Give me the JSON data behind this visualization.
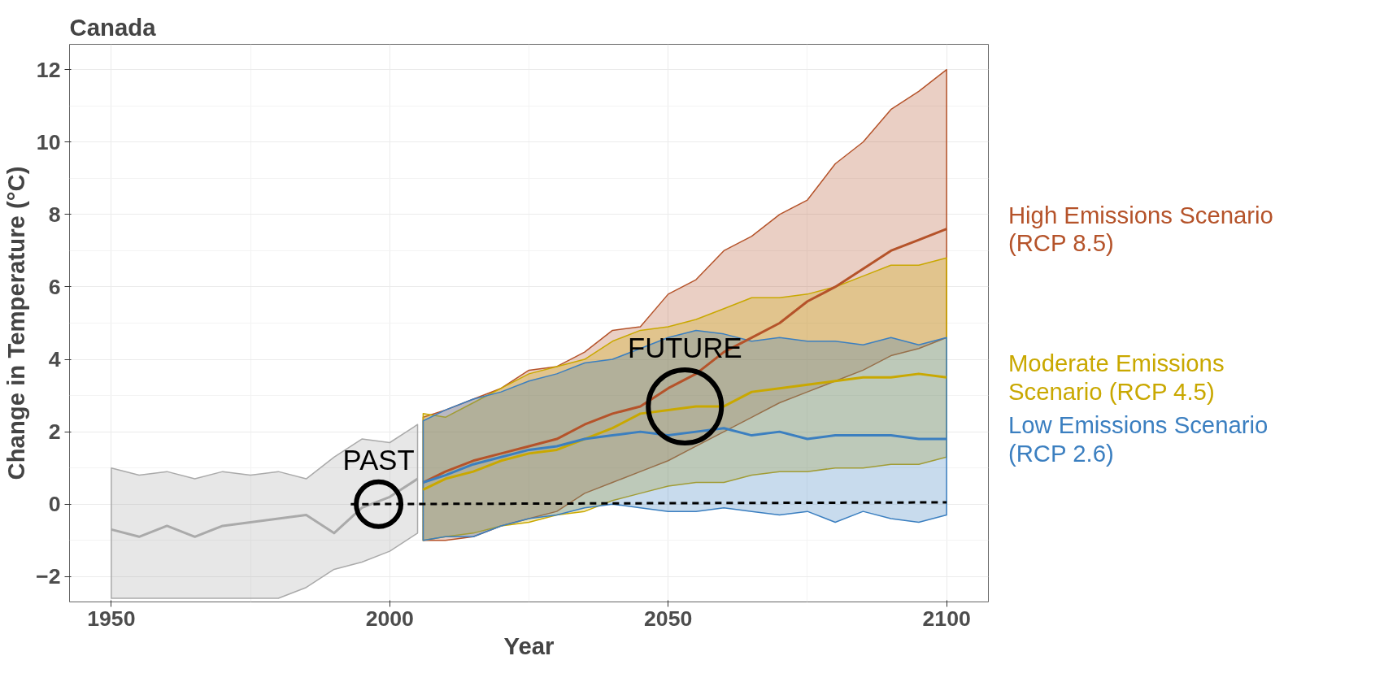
{
  "chart_data": {
    "type": "line",
    "title": "Canada",
    "xlabel": "Year",
    "ylabel": "Change in Temperature (°C)",
    "xlim": [
      1942.5,
      2107.5
    ],
    "ylim": [
      -2.7,
      12.7
    ],
    "xticks": [
      1950,
      2000,
      2050,
      2100
    ],
    "yticks": [
      -2,
      0,
      2,
      4,
      6,
      8,
      10,
      12
    ],
    "grid": true,
    "annotations": [
      {
        "text": "PAST",
        "x": 1998,
        "y": 0
      },
      {
        "text": "FUTURE",
        "x": 2053,
        "y": 2.7
      }
    ],
    "series": [
      {
        "color": "#aaaaaa",
        "x": [
          1950,
          1955,
          1960,
          1965,
          1970,
          1975,
          1980,
          1985,
          1990,
          1995,
          2000,
          2005
        ],
        "values": [
          -0.7,
          -0.9,
          -0.6,
          -0.9,
          -0.6,
          -0.5,
          -0.4,
          -0.3,
          -0.8,
          -0.1,
          0.2,
          0.7
        ],
        "upper": [
          1.0,
          0.8,
          0.9,
          0.7,
          0.9,
          0.8,
          0.9,
          0.7,
          1.3,
          1.8,
          1.7,
          2.2
        ],
        "lower": [
          -2.6,
          -2.6,
          -2.6,
          -2.6,
          -2.6,
          -2.6,
          -2.6,
          -2.3,
          -1.8,
          -1.6,
          -1.3,
          -0.8
        ]
      },
      {
        "name": "High Emissions Scenario\n(RCP 8.5)",
        "color": "#b5532a",
        "x": [
          2006,
          2010,
          2015,
          2020,
          2025,
          2030,
          2035,
          2040,
          2045,
          2050,
          2055,
          2060,
          2065,
          2070,
          2075,
          2080,
          2085,
          2090,
          2095,
          2100
        ],
        "values": [
          0.6,
          0.9,
          1.2,
          1.4,
          1.6,
          1.8,
          2.2,
          2.5,
          2.7,
          3.2,
          3.6,
          4.2,
          4.6,
          5.0,
          5.6,
          6.0,
          6.5,
          7.0,
          7.3,
          7.6
        ],
        "upper": [
          2.4,
          2.6,
          2.9,
          3.2,
          3.7,
          3.8,
          4.2,
          4.8,
          4.9,
          5.8,
          6.2,
          7.0,
          7.4,
          8.0,
          8.4,
          9.4,
          10.0,
          10.9,
          11.4,
          12.0
        ],
        "lower": [
          -1.0,
          -1.0,
          -0.9,
          -0.6,
          -0.4,
          -0.2,
          0.3,
          0.6,
          0.9,
          1.2,
          1.6,
          2.0,
          2.4,
          2.8,
          3.1,
          3.4,
          3.7,
          4.1,
          4.3,
          4.6
        ]
      },
      {
        "name": "Moderate Emissions\nScenario (RCP 4.5)",
        "color": "#c9a800",
        "x": [
          2006,
          2010,
          2015,
          2020,
          2025,
          2030,
          2035,
          2040,
          2045,
          2050,
          2055,
          2060,
          2065,
          2070,
          2075,
          2080,
          2085,
          2090,
          2095,
          2100
        ],
        "values": [
          0.4,
          0.7,
          0.9,
          1.2,
          1.4,
          1.5,
          1.8,
          2.1,
          2.5,
          2.6,
          2.7,
          2.7,
          3.1,
          3.2,
          3.3,
          3.4,
          3.5,
          3.5,
          3.6,
          3.5
        ],
        "upper": [
          2.5,
          2.4,
          2.8,
          3.2,
          3.6,
          3.8,
          4.0,
          4.5,
          4.8,
          4.9,
          5.1,
          5.4,
          5.7,
          5.7,
          5.8,
          6.0,
          6.3,
          6.6,
          6.6,
          6.8
        ],
        "lower": [
          -1.0,
          -0.9,
          -0.8,
          -0.6,
          -0.5,
          -0.3,
          -0.2,
          0.1,
          0.3,
          0.5,
          0.6,
          0.6,
          0.8,
          0.9,
          0.9,
          1.0,
          1.0,
          1.1,
          1.1,
          1.3
        ]
      },
      {
        "name": "Low Emissions Scenario\n(RCP 2.6)",
        "color": "#3b7fc0",
        "x": [
          2006,
          2010,
          2015,
          2020,
          2025,
          2030,
          2035,
          2040,
          2045,
          2050,
          2055,
          2060,
          2065,
          2070,
          2075,
          2080,
          2085,
          2090,
          2095,
          2100
        ],
        "values": [
          0.6,
          0.8,
          1.1,
          1.3,
          1.5,
          1.6,
          1.8,
          1.9,
          2.0,
          1.9,
          2.0,
          2.1,
          1.9,
          2.0,
          1.8,
          1.9,
          1.9,
          1.9,
          1.8,
          1.8
        ],
        "upper": [
          2.3,
          2.6,
          2.9,
          3.1,
          3.4,
          3.6,
          3.9,
          4.0,
          4.3,
          4.6,
          4.8,
          4.7,
          4.5,
          4.6,
          4.5,
          4.5,
          4.4,
          4.6,
          4.4,
          4.6
        ],
        "lower": [
          -1.0,
          -0.9,
          -0.9,
          -0.6,
          -0.4,
          -0.3,
          -0.1,
          0.0,
          -0.1,
          -0.2,
          -0.2,
          -0.1,
          -0.2,
          -0.3,
          -0.2,
          -0.5,
          -0.2,
          -0.4,
          -0.5,
          -0.3
        ]
      },
      {
        "color": "#000000",
        "line_style": "dashed",
        "x": [
          1993,
          2100
        ],
        "values": [
          0,
          0.05
        ]
      }
    ]
  }
}
